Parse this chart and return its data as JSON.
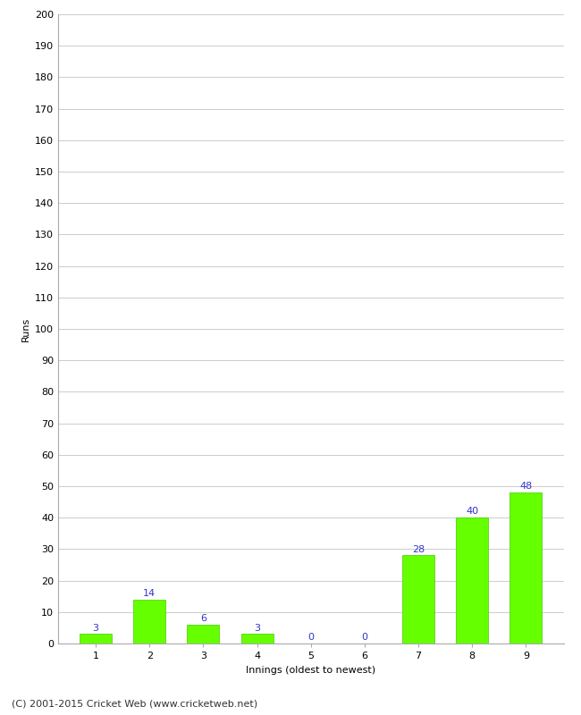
{
  "categories": [
    "1",
    "2",
    "3",
    "4",
    "5",
    "6",
    "7",
    "8",
    "9"
  ],
  "values": [
    3,
    14,
    6,
    3,
    0,
    0,
    28,
    40,
    48
  ],
  "bar_color": "#66ff00",
  "bar_edge_color": "#44cc00",
  "label_color": "#3333cc",
  "xlabel": "Innings (oldest to newest)",
  "ylabel": "Runs",
  "ylim": [
    0,
    200
  ],
  "yticks": [
    0,
    10,
    20,
    30,
    40,
    50,
    60,
    70,
    80,
    90,
    100,
    110,
    120,
    130,
    140,
    150,
    160,
    170,
    180,
    190,
    200
  ],
  "grid_color": "#cccccc",
  "background_color": "#ffffff",
  "footer": "(C) 2001-2015 Cricket Web (www.cricketweb.net)",
  "label_fontsize": 8,
  "axis_fontsize": 8,
  "footer_fontsize": 8
}
